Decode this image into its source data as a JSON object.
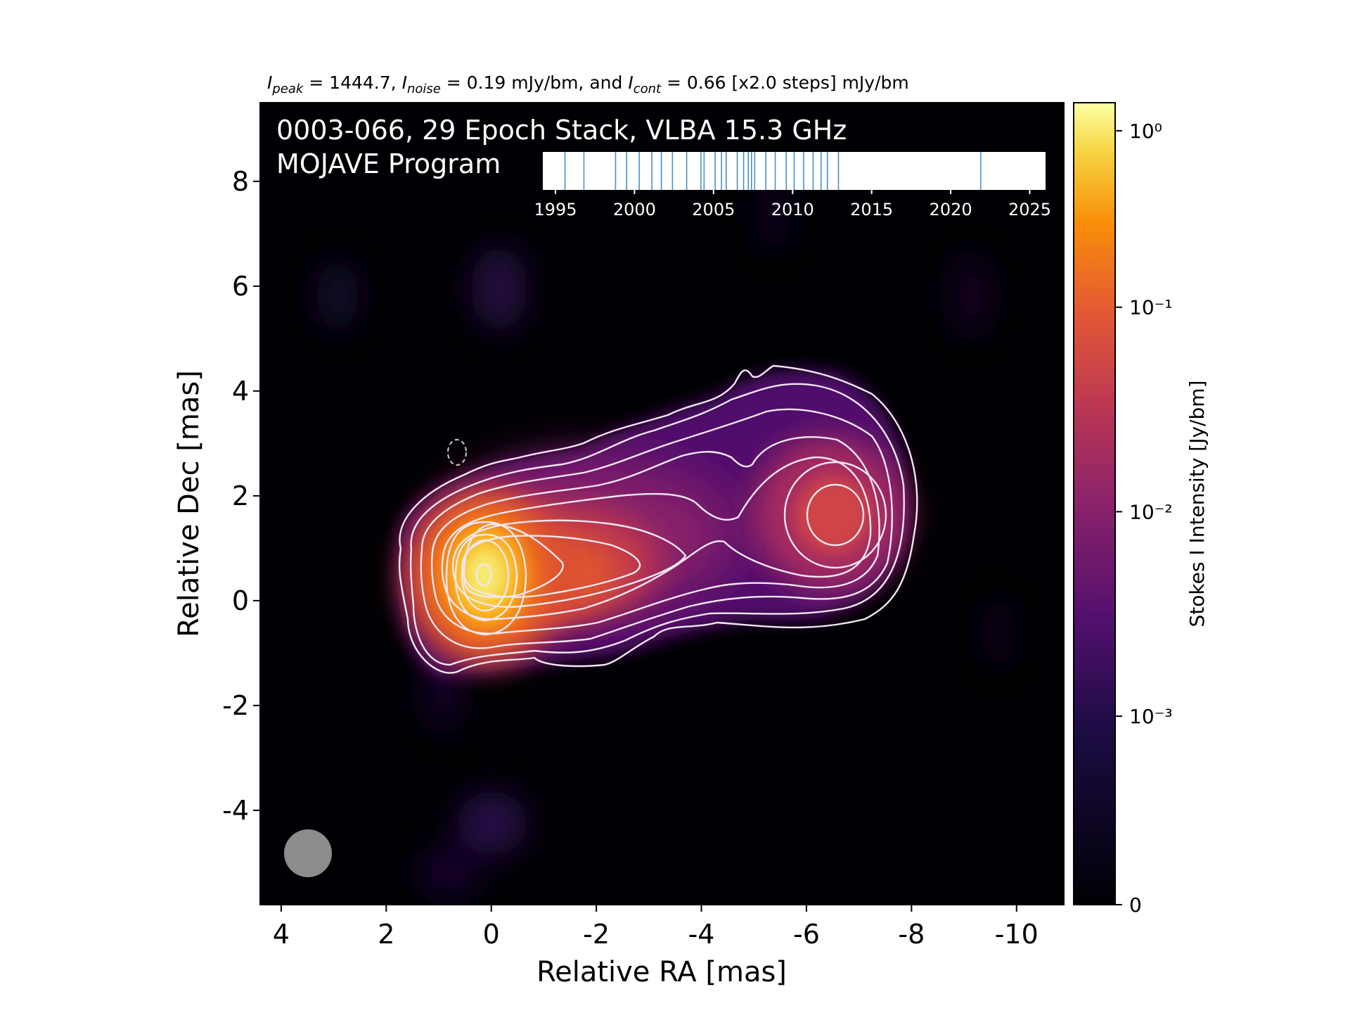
{
  "header": {
    "peak_label": "I",
    "peak_sub": "peak",
    "peak_value": " = 1444.7, ",
    "noise_label": "I",
    "noise_sub": "noise",
    "noise_value": " = 0.19 mJy/bm, and ",
    "cont_label": "I",
    "cont_sub": "cont",
    "cont_value": " = 0.66 [x2.0 steps] mJy/bm"
  },
  "overlay": {
    "line1": "0003-066, 29 Epoch Stack, VLBA 15.3 GHz",
    "line2": "MOJAVE Program"
  },
  "colors": {
    "background": "#000004",
    "contour": "#f2e6f2",
    "epoch_line": "#4a90c8",
    "beam": "#8c8c8c"
  },
  "chart_data": [
    {
      "type": "heatmap",
      "title": "",
      "xlabel": "Relative RA [mas]",
      "ylabel": "Relative Dec [mas]",
      "xlim": [
        4.4,
        -10.9
      ],
      "ylim": [
        -5.8,
        9.5
      ],
      "x_ticks": [
        4,
        2,
        0,
        -2,
        -4,
        -6,
        -8,
        -10
      ],
      "x_tick_labels": [
        "4",
        "2",
        "0",
        "-2",
        "-4",
        "-6",
        "-8",
        "-10"
      ],
      "y_ticks": [
        -4,
        -2,
        0,
        2,
        4,
        6,
        8
      ],
      "y_tick_labels": [
        "-4",
        "-2",
        "0",
        "2",
        "4",
        "6",
        "8"
      ],
      "colormap": "inferno",
      "components": [
        {
          "name": "core",
          "x": -0.1,
          "y": 0.55,
          "peak_jy_per_bm": 1.4447
        },
        {
          "name": "jet knot",
          "x": -1.8,
          "y": 0.7,
          "peak_jy_per_bm": 0.08
        },
        {
          "name": "outer knot",
          "x": -6.5,
          "y": 1.7,
          "peak_jy_per_bm": 0.05
        }
      ],
      "contour_levels_mjy_per_bm": [
        0.66,
        1.32,
        2.64,
        5.28,
        10.56,
        21.12,
        42.24,
        84.48,
        168.96,
        337.92,
        675.84,
        1351.68
      ],
      "negative_contour": {
        "x": 0.65,
        "y": 2.8,
        "level_mjy_per_bm": -0.66
      },
      "beam": {
        "x": 3.5,
        "y": -4.8,
        "shape": "circle"
      }
    },
    {
      "type": "colorbar",
      "label": "Stokes I Intensity [Jy/bm]",
      "scale": "log",
      "ticks": [
        "0",
        "10⁻³",
        "10⁻²",
        "10⁻¹",
        "10⁰"
      ],
      "tick_values": [
        0,
        0.001,
        0.01,
        0.1,
        1
      ],
      "range": [
        0,
        1.4447
      ]
    },
    {
      "type": "scatter",
      "title": "",
      "xlabel": "",
      "x_ticks": [
        1995,
        2000,
        2005,
        2010,
        2015,
        2020,
        2025
      ],
      "x_tick_labels": [
        "1995",
        "2000",
        "2005",
        "2010",
        "2015",
        "2020",
        "2025"
      ],
      "xlim": [
        1994.2,
        2026.0
      ],
      "epochs": [
        1995.6,
        1996.8,
        1998.8,
        1999.5,
        2000.3,
        2001.1,
        2001.7,
        2002.4,
        2003.3,
        2004.2,
        2004.4,
        2005.1,
        2005.5,
        2005.8,
        2006.5,
        2006.9,
        2007.2,
        2007.4,
        2007.6,
        2008.3,
        2008.9,
        2009.6,
        2010.1,
        2010.7,
        2011.3,
        2011.8,
        2012.2,
        2012.9,
        2021.9
      ]
    }
  ]
}
